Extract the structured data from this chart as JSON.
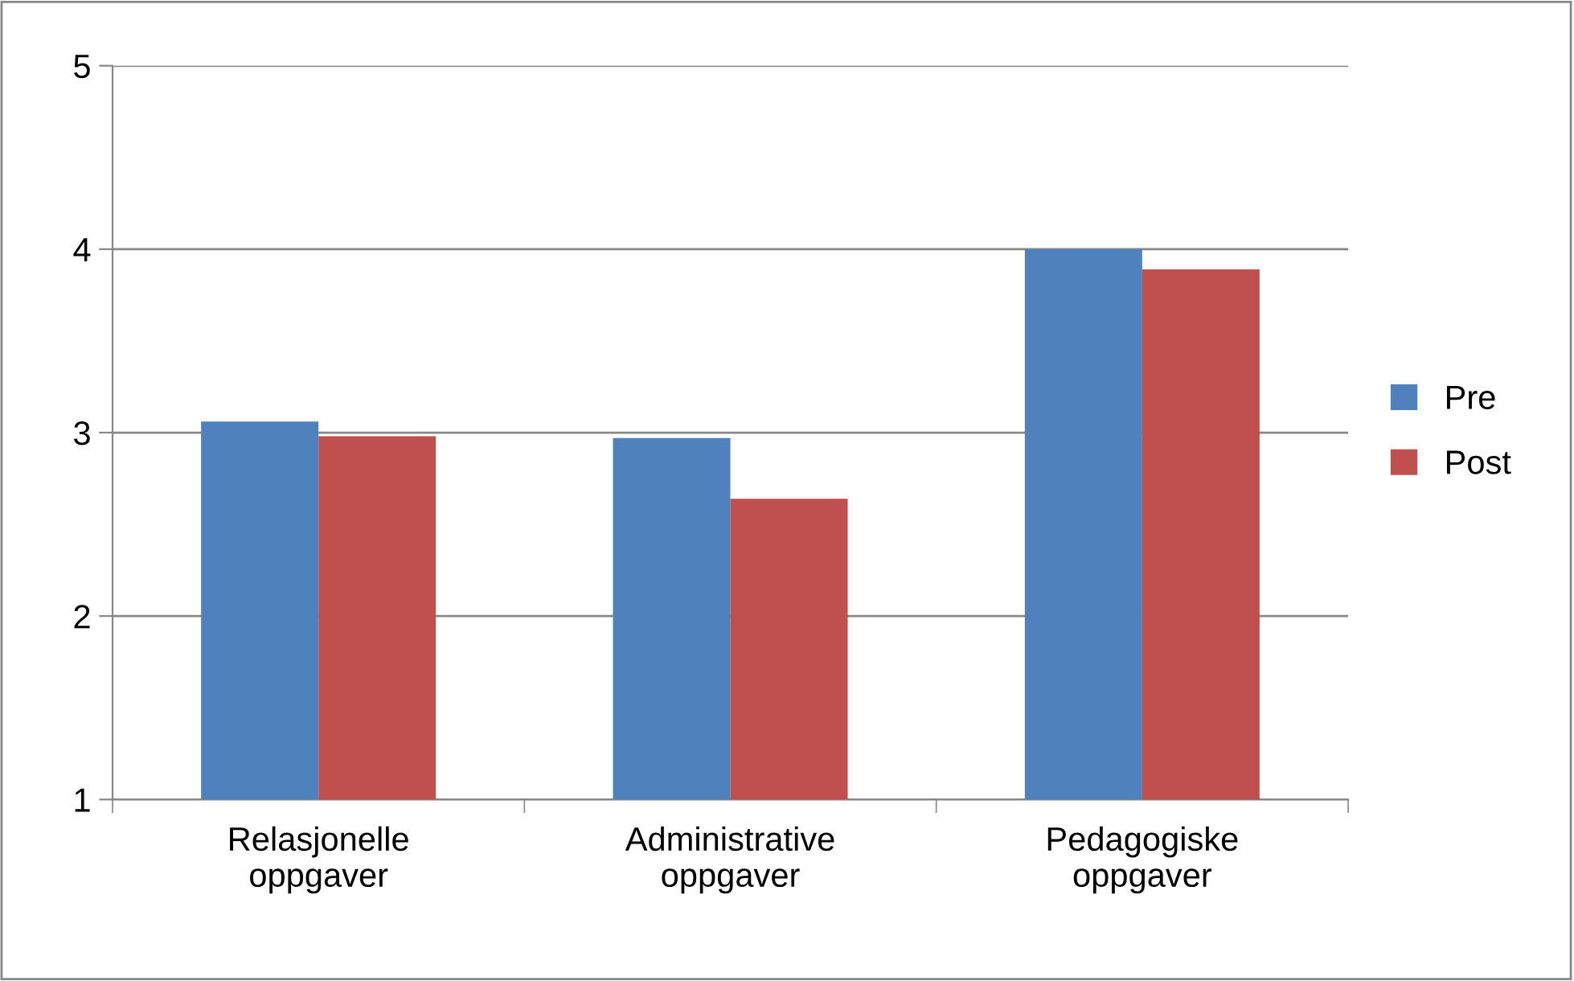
{
  "chart_data": {
    "type": "bar",
    "categories": [
      "Relasjonelle\noppgaver",
      "Administrative\noppgaver",
      "Pedagogiske\noppgaver"
    ],
    "series": [
      {
        "name": "Pre",
        "color": "#4f81bd",
        "values": [
          3.06,
          2.97,
          4.0
        ]
      },
      {
        "name": "Post",
        "color": "#c0504d",
        "values": [
          2.98,
          2.64,
          3.89
        ]
      }
    ],
    "ylim": [
      1,
      5
    ],
    "yticks": [
      1,
      2,
      3,
      4,
      5
    ],
    "grid": "y",
    "legend": "right"
  }
}
